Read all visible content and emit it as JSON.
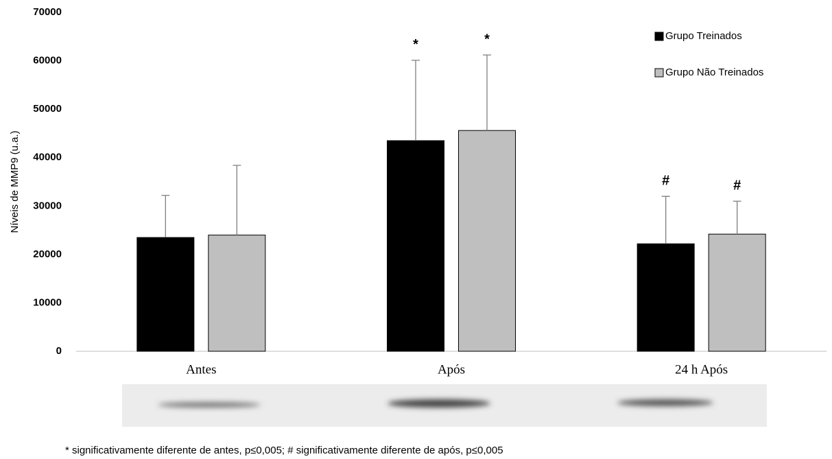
{
  "chart_data": {
    "type": "bar",
    "y_label": "Níveis de MMP9 (u.a.)",
    "categories": [
      "Antes",
      "Após",
      "24 h Após"
    ],
    "series": [
      {
        "name": "Grupo Treinados",
        "color": "#000000",
        "values": [
          23500,
          43500,
          22200
        ],
        "errors": [
          8700,
          16600,
          9800
        ],
        "markers": [
          null,
          "*",
          "#"
        ]
      },
      {
        "name": "Grupo Não Treinados",
        "color": "#bfbfbf",
        "values": [
          24000,
          45600,
          24200
        ],
        "errors": [
          14400,
          15600,
          6800
        ],
        "markers": [
          null,
          "*",
          "#"
        ]
      }
    ],
    "ylim": [
      0,
      70000
    ],
    "yticks": [
      0,
      10000,
      20000,
      30000,
      40000,
      50000,
      60000,
      70000
    ],
    "grid": false,
    "legend": "top-right",
    "footnote": "* significativamente diferente de antes, p≤0,005; # significativamente diferente de após, p≤0,005"
  }
}
